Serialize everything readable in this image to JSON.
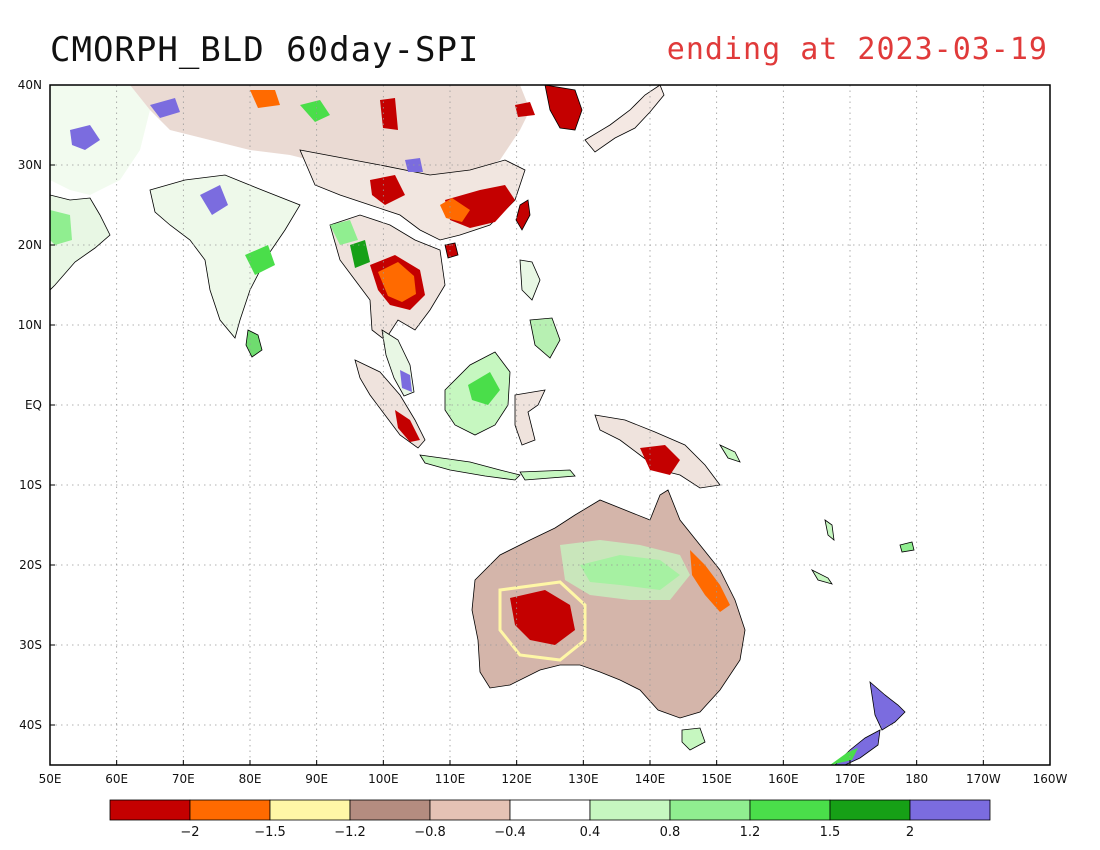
{
  "title": "CMORPH_BLD 60day-SPI",
  "subtitle": "ending at 2023-03-19",
  "map": {
    "lon_range": [
      50,
      200
    ],
    "lat_range": [
      -45,
      40
    ],
    "lat_ticks": [
      {
        "value": 40,
        "label": "40N"
      },
      {
        "value": 30,
        "label": "30N"
      },
      {
        "value": 20,
        "label": "20N"
      },
      {
        "value": 10,
        "label": "10N"
      },
      {
        "value": 0,
        "label": "EQ"
      },
      {
        "value": -10,
        "label": "10S"
      },
      {
        "value": -20,
        "label": "20S"
      },
      {
        "value": -30,
        "label": "30S"
      },
      {
        "value": -40,
        "label": "40S"
      }
    ],
    "lon_ticks": [
      {
        "value": 50,
        "label": "50E"
      },
      {
        "value": 60,
        "label": "60E"
      },
      {
        "value": 70,
        "label": "70E"
      },
      {
        "value": 80,
        "label": "80E"
      },
      {
        "value": 90,
        "label": "90E"
      },
      {
        "value": 100,
        "label": "100E"
      },
      {
        "value": 110,
        "label": "110E"
      },
      {
        "value": 120,
        "label": "120E"
      },
      {
        "value": 130,
        "label": "130E"
      },
      {
        "value": 140,
        "label": "140E"
      },
      {
        "value": 150,
        "label": "150E"
      },
      {
        "value": 160,
        "label": "160E"
      },
      {
        "value": 170,
        "label": "170E"
      },
      {
        "value": 180,
        "label": "180"
      },
      {
        "value": 190,
        "label": "170W"
      },
      {
        "value": 200,
        "label": "160W"
      }
    ],
    "grid": true
  },
  "legend": {
    "colors": [
      "#c40000",
      "#ff6a00",
      "#fff7a6",
      "#b48c80",
      "#e5c2b5",
      "#ffffff",
      "#c6f7c0",
      "#90ee90",
      "#4ade4a",
      "#16a016",
      "#7b6cdf"
    ],
    "labels": [
      "−2",
      "−1.5",
      "−1.2",
      "−0.8",
      "−0.4",
      "0.4",
      "0.8",
      "1.2",
      "1.5",
      "2"
    ]
  },
  "colors": {
    "coast": "#000000",
    "gray_land": "#bfa398",
    "light_brown": "#e5c2b5",
    "dark_red": "#c40000",
    "orange": "#ff6a00",
    "yellow": "#fff7a6",
    "light_green": "#c6f7c0",
    "mid_green": "#90ee90",
    "green": "#4ade4a",
    "dark_green": "#16a016",
    "purple": "#7b6cdf"
  }
}
